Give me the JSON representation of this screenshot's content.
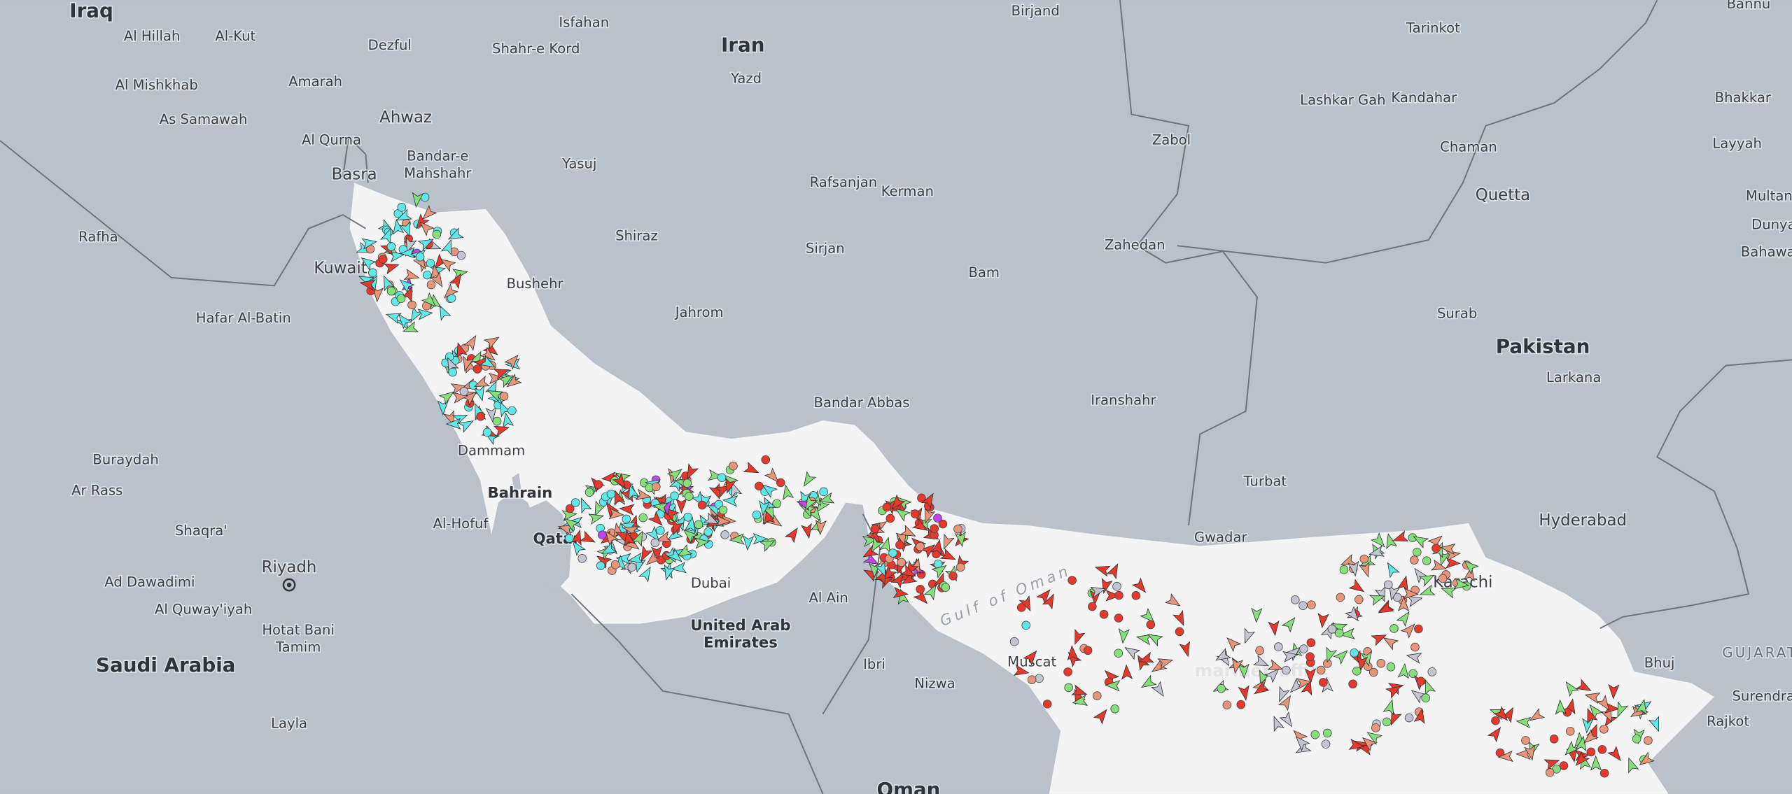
{
  "map": {
    "countries": [
      "Iraq",
      "Iran",
      "Pakistan",
      "Saudi Arabia",
      "Oman",
      "Qatar",
      "Bahrain",
      [
        "United Arab",
        "Emirates"
      ]
    ],
    "cities": [
      "Al Hillah",
      "Al-Kut",
      "Dezful",
      "Isfahan",
      "Shahr-e Kord",
      "Yazd",
      "Birjand",
      "Tarinkot",
      "Bannu",
      "Al Mishkhab",
      "Amarah",
      "Ahwaz",
      "As Samawah",
      "Lashkar Gah",
      "Kandahar",
      "Bhakkar",
      "Al Qurna",
      [
        "Bandar-e",
        "Mahshahr"
      ],
      "Yasuj",
      "Zabol",
      "Chaman",
      "Layyah",
      "Basra",
      "Rafsanjan",
      "Kerman",
      "Quetta",
      "Multan",
      "Rafha",
      "Shiraz",
      "Sirjan",
      "Zahedan",
      "Dunya",
      "Bahawa",
      "Kuwait",
      "Bushehr",
      "Bam",
      "Hafar Al-Batin",
      "Jahrom",
      "Surab",
      "Larkana",
      "Bandar Abbas",
      "Iranshahr",
      "Dammam",
      "Buraydah",
      "Ar Rass",
      "Turbat",
      "Hyderabad",
      "Al-Hofuf",
      "Shaqra'",
      "Gwadar",
      "Riyadh",
      "Ad Dawadimi",
      "Karachi",
      "Al Ain",
      "Al Quway'iyah",
      [
        "Hotat Bani",
        "Tamim"
      ],
      "Ibri",
      "Muscat",
      "Bhuj",
      "Nizwa",
      "Surendra",
      "Rajkot",
      "Layla",
      "Dubai"
    ],
    "region": "GUJARAT",
    "sea": "Gulf of Oman",
    "watermark": "marinetraffic"
  }
}
